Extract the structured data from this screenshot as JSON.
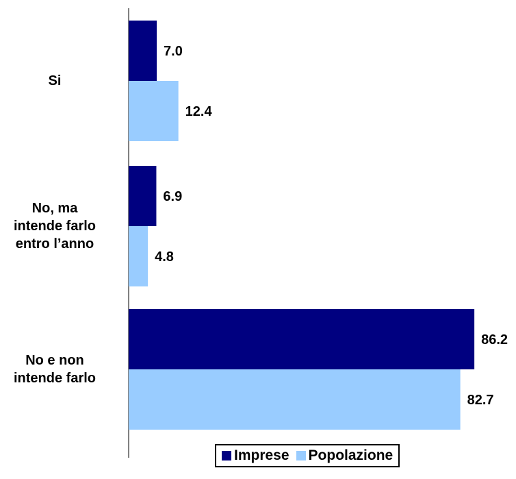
{
  "chart_data": {
    "type": "bar",
    "orientation": "horizontal",
    "categories": [
      "Si",
      "No, ma intende farlo entro l’anno",
      "No e non intende farlo"
    ],
    "series": [
      {
        "name": "Imprese",
        "color": "#000080",
        "values": [
          7.0,
          6.9,
          86.2
        ]
      },
      {
        "name": "Popolazione",
        "color": "#99CCFF",
        "values": [
          12.4,
          4.8,
          82.7
        ]
      }
    ],
    "data_labels": [
      [
        "7.0",
        "6.9",
        "86.2"
      ],
      [
        "12.4",
        "4.8",
        "82.7"
      ]
    ],
    "xlim": [
      0,
      100
    ],
    "grid": false,
    "legend_position": "bottom"
  },
  "category_labels": [
    [
      "Si"
    ],
    [
      "No, ma",
      "intende farlo",
      "entro l’anno"
    ],
    [
      "No e non",
      "intende farlo"
    ]
  ]
}
